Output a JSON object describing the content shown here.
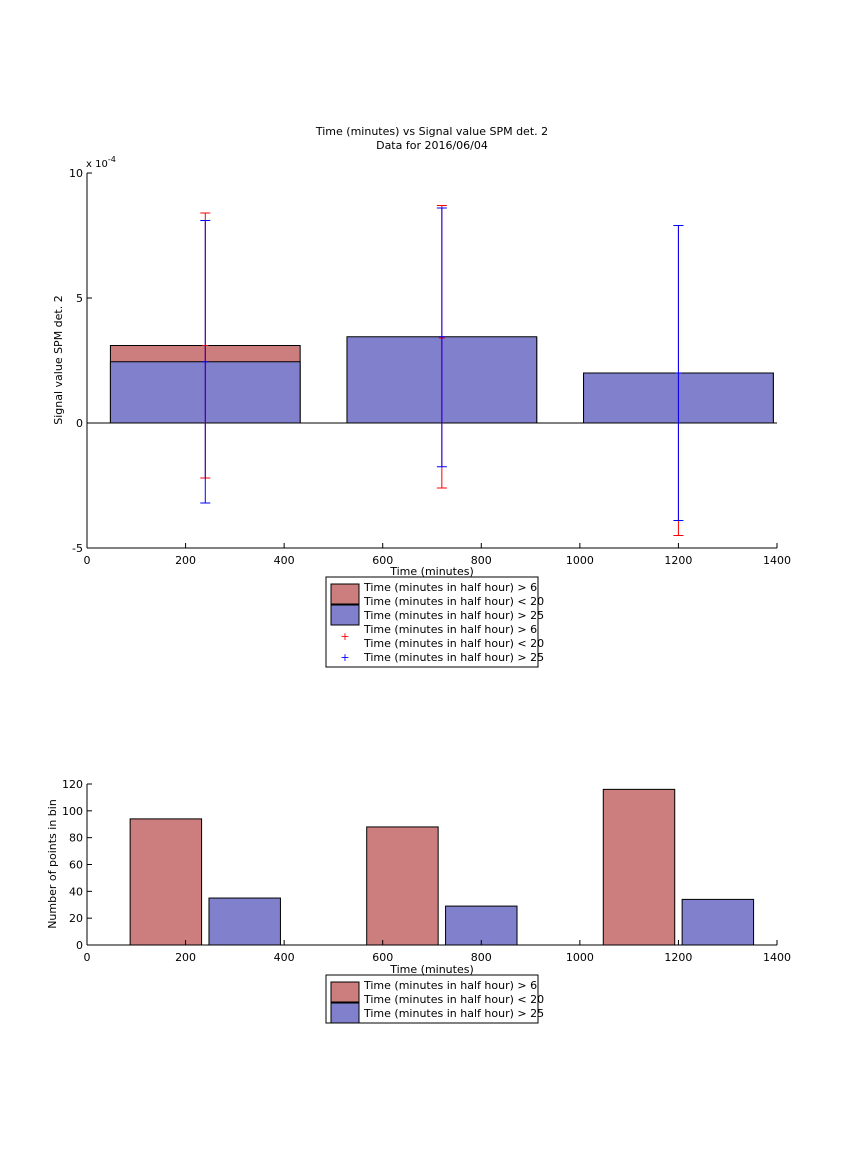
{
  "chart_data": [
    {
      "type": "bar",
      "title": "Time (minutes) vs Signal value SPM det. 2",
      "subtitle": "Data for 2016/06/04",
      "xlabel": "Time (minutes)",
      "ylabel": "Signal value SPM det. 2",
      "y_exponent_label": "x 10",
      "y_exponent_power": "-4",
      "xlim": [
        0,
        1400
      ],
      "ylim": [
        -5,
        10
      ],
      "x_ticks": [
        0,
        200,
        400,
        600,
        800,
        1000,
        1200,
        1400
      ],
      "y_ticks": [
        -5,
        0,
        5,
        10
      ],
      "grid": false,
      "legend_position": "below",
      "colors": {
        "red_series": "#cc7d7d",
        "blue_series": "#8080cc",
        "red_error": "#ff0000",
        "blue_error": "#0000ff"
      },
      "bar_categories": [
        240,
        720,
        1200
      ],
      "bar_width": 385,
      "series": [
        {
          "name": "Time (minutes in half hour) > 6\nTime (minutes in half hour) < 20",
          "values": [
            3.1,
            3.4,
            2.0
          ],
          "error_low": [
            -2.2,
            -2.6,
            -4.5
          ],
          "error_high": [
            8.4,
            8.7,
            7.9
          ]
        },
        {
          "name": "Time (minutes in half hour) > 25",
          "values": [
            2.45,
            3.45,
            2.0
          ],
          "error_low": [
            -3.2,
            -1.75,
            -3.9
          ],
          "error_high": [
            8.1,
            8.6,
            7.9
          ]
        }
      ],
      "legend": [
        {
          "kind": "bar",
          "color": "#cc7d7d",
          "line1": "Time (minutes in half hour) > 6",
          "line2": "Time (minutes in half hour) < 20"
        },
        {
          "kind": "bar",
          "color": "#8080cc",
          "line1": "Time (minutes in half hour) > 25",
          "line2": ""
        },
        {
          "kind": "marker",
          "color": "#ff0000",
          "line1": "Time (minutes in half hour) > 6",
          "line2": "Time (minutes in half hour) < 20"
        },
        {
          "kind": "marker",
          "color": "#0000ff",
          "line1": "Time (minutes in half hour) > 25",
          "line2": ""
        }
      ]
    },
    {
      "type": "bar",
      "title": "",
      "xlabel": "Time (minutes)",
      "ylabel": "Number of points in bin",
      "xlim": [
        0,
        1400
      ],
      "ylim": [
        0,
        120
      ],
      "x_ticks": [
        0,
        200,
        400,
        600,
        800,
        1000,
        1200,
        1400
      ],
      "y_ticks": [
        0,
        20,
        40,
        60,
        80,
        100,
        120
      ],
      "grid": false,
      "legend_position": "below",
      "bar_categories": [
        240,
        720,
        1200
      ],
      "bar_width": 145,
      "group_offsets": [
        -80,
        80
      ],
      "series": [
        {
          "name": "Time (minutes in half hour) > 6\nTime (minutes in half hour) < 20",
          "color": "#cc7d7d",
          "values": [
            94,
            88,
            116
          ]
        },
        {
          "name": "Time (minutes in half hour) > 25",
          "color": "#8080cc",
          "values": [
            35,
            29,
            34
          ]
        }
      ],
      "legend": [
        {
          "kind": "bar",
          "color": "#cc7d7d",
          "line1": "Time (minutes in half hour) > 6",
          "line2": "Time (minutes in half hour) < 20"
        },
        {
          "kind": "bar",
          "color": "#8080cc",
          "line1": "Time (minutes in half hour) > 25",
          "line2": ""
        }
      ]
    }
  ]
}
